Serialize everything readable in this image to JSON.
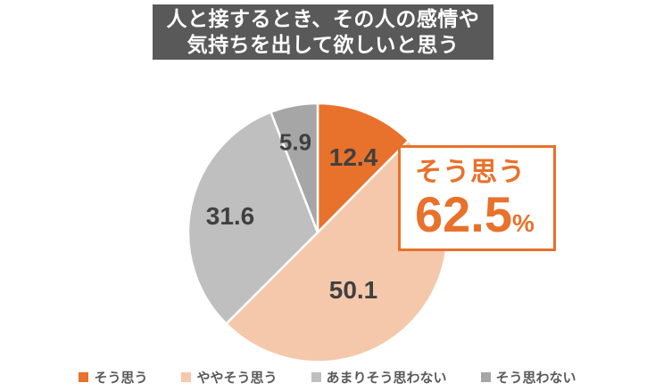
{
  "title": {
    "line1": "人と接するとき、その人の感情や",
    "line2": "気持ちを出して欲しいと思う"
  },
  "chart_data": {
    "type": "pie",
    "title": "人と接するとき、その人の感情や気持ちを出して欲しいと思う",
    "categories": [
      "そう思う",
      "ややそう思う",
      "あまりそう思わない",
      "そう思わない"
    ],
    "values": [
      12.4,
      50.1,
      31.6,
      5.9
    ],
    "unit": "%",
    "colors": [
      "#e8712b",
      "#f5c8ab",
      "#bfbfbf",
      "#a6a6a6"
    ],
    "start_angle_deg": 0,
    "direction": "clockwise",
    "slice_labels": [
      "12.4",
      "50.1",
      "31.6",
      "5.9"
    ],
    "slice_border_color": "#ffffff",
    "legend_position": "bottom"
  },
  "callout": {
    "label": "そう思う",
    "value": "62.5",
    "unit": "%"
  },
  "legend": {
    "items": [
      {
        "label": "そう思う",
        "color": "#e8712b"
      },
      {
        "label": "ややそう思う",
        "color": "#f5c8ab"
      },
      {
        "label": "あまりそう思わない",
        "color": "#bfbfbf"
      },
      {
        "label": "そう思わない",
        "color": "#a6a6a6"
      }
    ]
  },
  "colors": {
    "accent_orange": "#e8712b",
    "title_background": "#595959",
    "slice_label_text": "#404040",
    "legend_text": "#595959"
  }
}
